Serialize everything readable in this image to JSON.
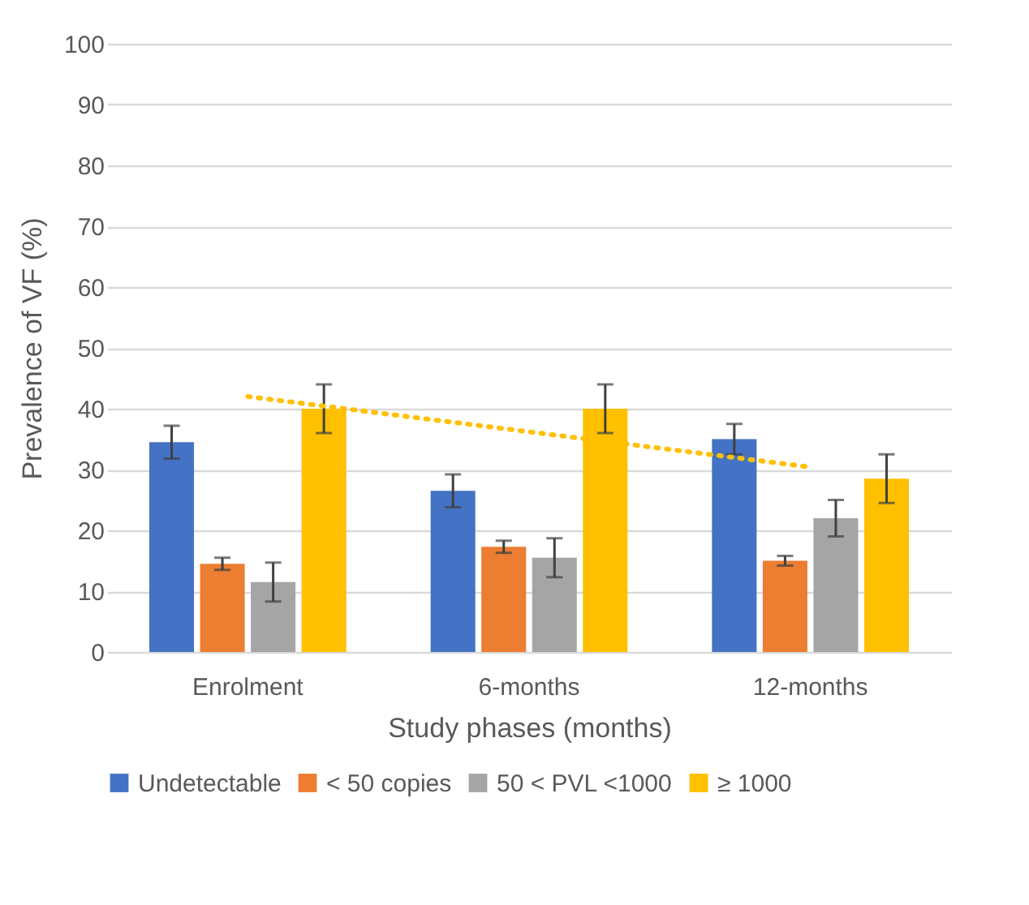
{
  "chart_data": {
    "type": "bar",
    "xlabel": "Study phases (months)",
    "ylabel": "Prevalence of VF (%)",
    "categories": [
      "Enrolment",
      "6-months",
      "12-months"
    ],
    "series": [
      {
        "name": "Undetectable",
        "color": "#4472c4",
        "values": [
          34.5,
          26.5,
          35
        ],
        "errors": [
          2.7,
          2.7,
          2.5
        ]
      },
      {
        "name": "< 50 copies",
        "color": "#ed7d31",
        "values": [
          14.5,
          17.3,
          15
        ],
        "errors": [
          1,
          1,
          0.8
        ]
      },
      {
        "name": "50 < PVL <1000",
        "color": "#a5a5a5",
        "values": [
          11.5,
          15.5,
          22
        ],
        "errors": [
          3.2,
          3.2,
          3
        ]
      },
      {
        "name": "≥ 1000",
        "color": "#ffc000",
        "values": [
          40,
          40,
          28.5
        ],
        "errors": [
          4,
          4,
          4
        ]
      },
      {
        "type": "line",
        "color": "#ffc000",
        "line_style": "dotted",
        "x": [
          "Enrolment",
          "6-months",
          "12-months"
        ],
        "values": [
          42,
          36.2,
          30.4
        ]
      }
    ],
    "ylim": [
      0,
      100
    ],
    "yticks": [
      0,
      10,
      20,
      30,
      40,
      50,
      60,
      70,
      80,
      90,
      100
    ],
    "grid": "y",
    "legend": "bottom"
  }
}
